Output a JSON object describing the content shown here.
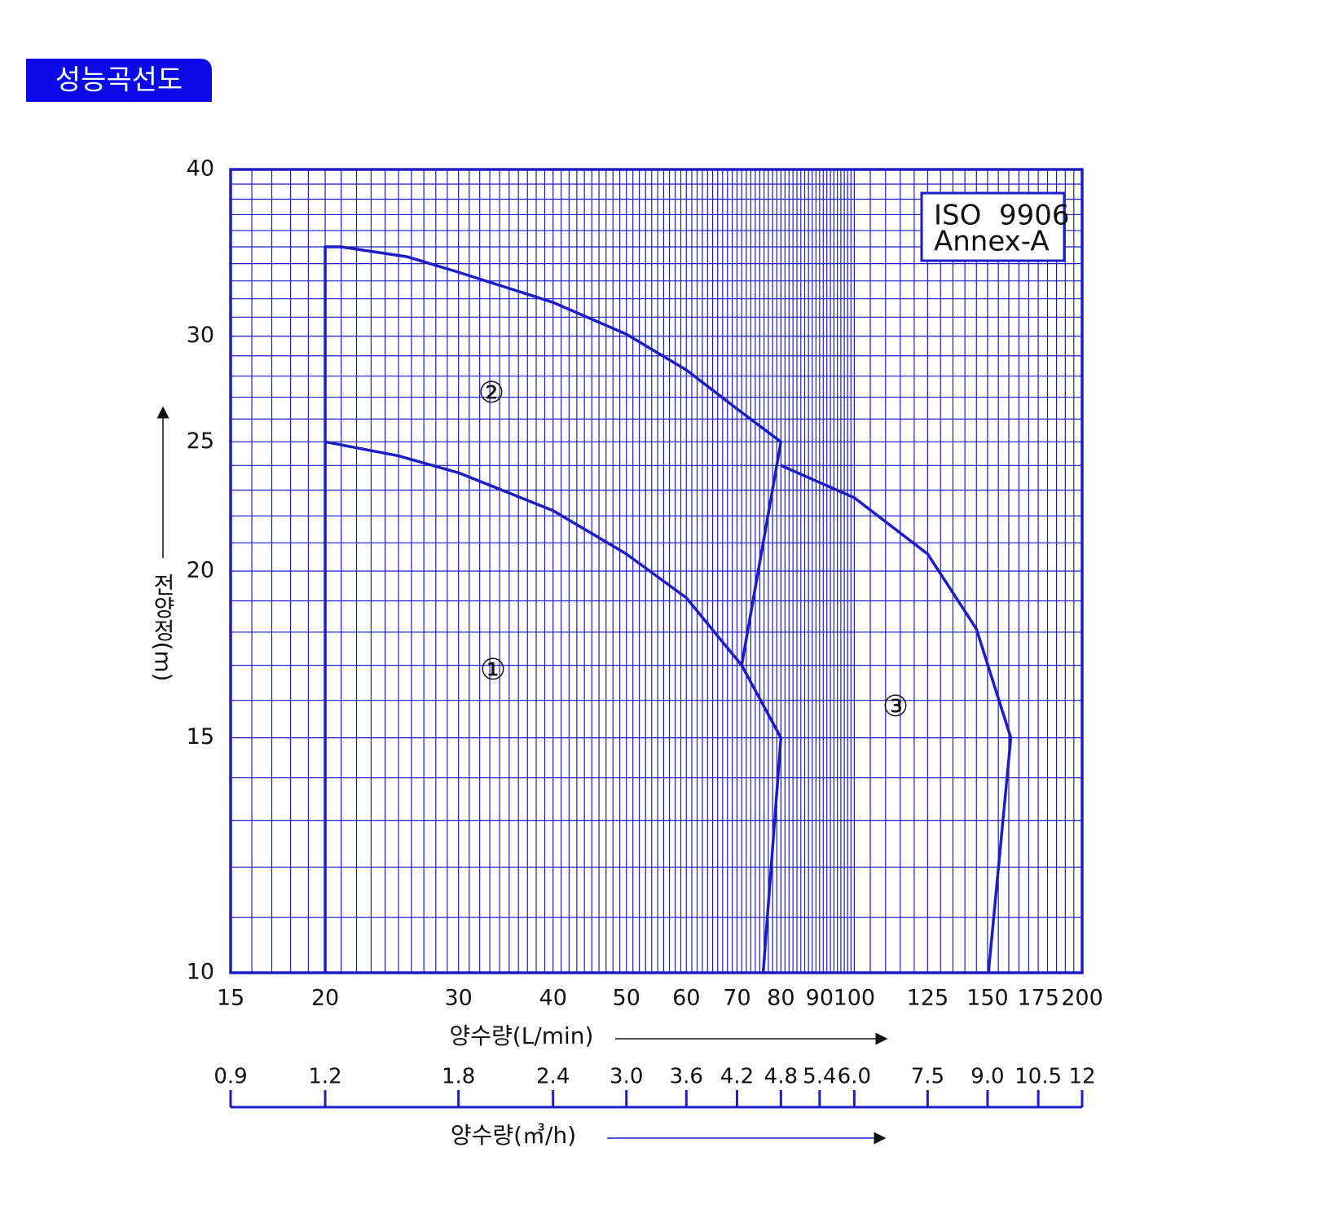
{
  "header": {
    "title": "성능곡선도"
  },
  "chart_data": {
    "type": "line",
    "log_x": true,
    "log_y": true,
    "grid": true,
    "color": "#1c1cc8",
    "ylabel": "전양정(m)",
    "xlabel": "양수량(L/min)",
    "x2label": "양수량(㎥/h)",
    "annotation": [
      "ISO  9906",
      "Annex-A"
    ],
    "region_labels": [
      "①",
      "②",
      "③"
    ],
    "xlim": [
      15,
      200
    ],
    "ylim": [
      10,
      40
    ],
    "xticks": [
      15,
      20,
      30,
      40,
      50,
      60,
      70,
      80,
      90,
      100,
      125,
      150,
      175,
      200
    ],
    "yticks": [
      10,
      15,
      20,
      25,
      30,
      40
    ],
    "x2lim": [
      0.9,
      12
    ],
    "x2ticks": [
      0.9,
      1.2,
      1.8,
      2.4,
      {
        "value": 3,
        "label": "3.0"
      },
      3.6,
      4.2,
      4.8,
      5.4,
      {
        "value": 6,
        "label": "6.0"
      },
      7.5,
      {
        "value": 9,
        "label": "9.0"
      },
      10.5,
      12
    ],
    "xgrid": [
      15,
      16,
      17,
      18,
      19,
      20,
      21,
      22,
      23,
      24,
      25,
      26,
      27,
      28,
      29,
      30,
      31,
      32,
      33,
      34,
      35,
      36,
      37,
      38,
      39,
      40,
      41,
      42,
      43,
      44,
      45,
      46,
      47,
      48,
      49,
      50,
      51,
      52,
      53,
      54,
      55,
      56,
      57,
      58,
      59,
      60,
      61,
      62,
      63,
      64,
      65,
      66,
      67,
      68,
      69,
      70,
      71,
      72,
      73,
      74,
      75,
      76,
      77,
      78,
      79,
      80,
      81,
      82,
      83,
      84,
      85,
      86,
      87,
      88,
      89,
      90,
      91,
      92,
      93,
      94,
      95,
      96,
      97,
      98,
      99,
      100,
      105,
      110,
      115,
      120,
      125,
      130,
      135,
      140,
      145,
      150,
      155,
      160,
      165,
      170,
      175,
      180,
      185,
      190,
      195,
      200
    ],
    "ygrid": [
      10,
      11,
      12,
      13,
      14,
      15,
      16,
      17,
      18,
      19,
      20,
      21,
      22,
      23,
      24,
      25,
      26,
      27,
      28,
      29,
      30,
      31,
      32,
      33,
      34,
      35,
      36,
      37,
      38,
      39,
      40
    ],
    "series": [
      {
        "x": [
          20,
          20,
          25,
          30,
          40,
          50,
          60,
          71,
          80,
          75.8
        ],
        "values": [
          10,
          25,
          24.4,
          23.7,
          22.2,
          20.6,
          19.1,
          17,
          15,
          10
        ]
      },
      {
        "x": [
          20,
          20,
          21,
          25.7,
          30,
          40,
          50,
          60,
          71,
          80,
          71
        ],
        "values": [
          25,
          35,
          35,
          34.4,
          33.5,
          31.8,
          30.1,
          28.3,
          26.3,
          25,
          17
        ]
      },
      {
        "x": [
          80,
          100,
          125,
          145,
          161,
          150.4
        ],
        "values": [
          24,
          22.7,
          20.6,
          18.1,
          15,
          10
        ]
      }
    ]
  }
}
